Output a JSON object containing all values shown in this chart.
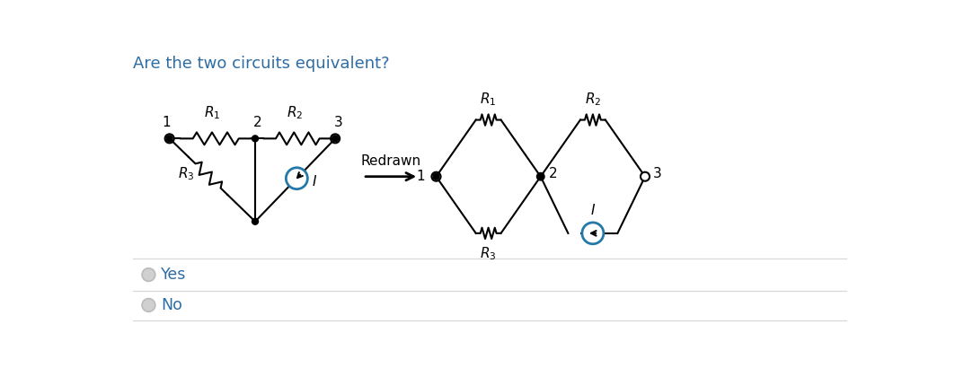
{
  "title": "Are the two circuits equivalent?",
  "title_color": "#2e6da4",
  "title_fontsize": 13,
  "bg_color": "#ffffff",
  "line_color": "#000000",
  "circuit_color": "#2479a8",
  "yes_label": "Yes",
  "no_label": "No",
  "redrawn_label": "Redrawn",
  "radio_color": "#bbbbbb",
  "radio_fill": "#d0d0d0"
}
